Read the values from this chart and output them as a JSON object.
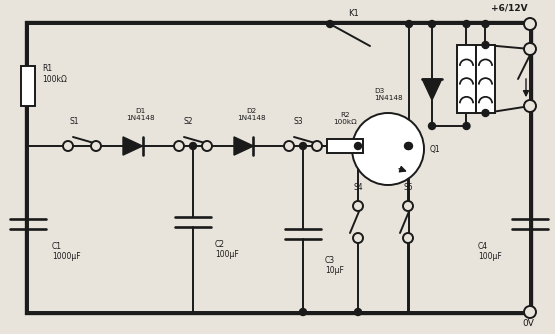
{
  "bg_color": "#e8e4dc",
  "line_color": "#1a1a1a",
  "line_width": 1.4,
  "vcc_label": "+6/12V",
  "gnd_label": "0V",
  "k1_label": "K1",
  "R1_label": "R1\n100kΩ",
  "R2_label": "R2\n100kΩ",
  "D1_label": "D1\n1N4148",
  "D2_label": "D2\n1N4148",
  "D3_label": "D3\n1N4148",
  "S1_label": "S1",
  "S2_label": "S2",
  "S3_label": "S3",
  "S4_label": "S4",
  "S5_label": "S5",
  "C1_label": "C1\n1000μF",
  "C2_label": "C2\n100μF",
  "C3_label": "C3\n10μF",
  "C4_label": "C4\n100μF",
  "Q1_label": "Q1"
}
